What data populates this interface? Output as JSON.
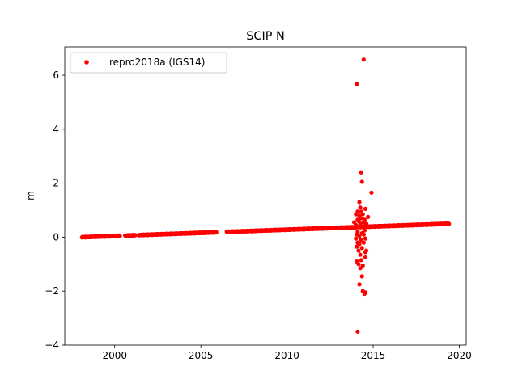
{
  "chart_data": {
    "type": "scatter",
    "title": "SCIP N",
    "xlabel": "",
    "ylabel": "m",
    "xlim": [
      1997.1,
      2020.4
    ],
    "ylim": [
      -4,
      7.05
    ],
    "xticks": [
      2000,
      2005,
      2010,
      2015,
      2020
    ],
    "yticks": [
      -4,
      -2,
      0,
      2,
      4,
      6
    ],
    "grid": false,
    "legend_position": "upper-left",
    "marker": "dot",
    "series": [
      {
        "name": "repro2018a (IGS14)",
        "color": "#ff0000",
        "trend": {
          "x_start": 1998.1,
          "x_end": 2019.4,
          "y_start": 0.0,
          "y_end": 0.5
        },
        "coverage_ranges": [
          [
            1998.1,
            2000.3
          ],
          [
            2000.6,
            2001.2
          ],
          [
            2001.4,
            2005.9
          ],
          [
            2006.5,
            2014.0
          ],
          [
            2014.1,
            2019.4
          ]
        ],
        "outliers": [
          [
            14.05,
            5.67
          ],
          [
            14.45,
            6.58
          ],
          [
            14.3,
            2.4
          ],
          [
            14.35,
            2.05
          ],
          [
            14.9,
            1.65
          ],
          [
            14.2,
            1.3
          ],
          [
            14.25,
            1.1
          ],
          [
            14.1,
            0.95
          ],
          [
            14.3,
            0.95
          ],
          [
            14.55,
            1.05
          ],
          [
            14.0,
            0.85
          ],
          [
            14.2,
            0.8
          ],
          [
            14.4,
            0.85
          ],
          [
            14.7,
            0.75
          ],
          [
            14.1,
            0.65
          ],
          [
            14.3,
            0.7
          ],
          [
            14.5,
            0.65
          ],
          [
            13.9,
            0.55
          ],
          [
            14.15,
            0.6
          ],
          [
            14.45,
            0.55
          ],
          [
            14.6,
            0.5
          ],
          [
            14.0,
            0.45
          ],
          [
            14.25,
            0.5
          ],
          [
            14.35,
            0.4
          ],
          [
            14.1,
            0.2
          ],
          [
            14.35,
            0.15
          ],
          [
            14.5,
            0.25
          ],
          [
            14.05,
            0.1
          ],
          [
            14.2,
            0.05
          ],
          [
            14.45,
            0.1
          ],
          [
            14.0,
            -0.05
          ],
          [
            14.3,
            -0.1
          ],
          [
            14.55,
            -0.05
          ],
          [
            14.1,
            -0.2
          ],
          [
            14.2,
            -0.25
          ],
          [
            14.45,
            -0.2
          ],
          [
            14.05,
            -0.35
          ],
          [
            14.35,
            -0.4
          ],
          [
            14.15,
            -0.5
          ],
          [
            14.55,
            -0.55
          ],
          [
            14.25,
            -0.65
          ],
          [
            14.6,
            -0.5
          ],
          [
            14.05,
            -0.9
          ],
          [
            14.3,
            -0.85
          ],
          [
            14.55,
            -0.75
          ],
          [
            14.15,
            -1.0
          ],
          [
            14.4,
            -1.05
          ],
          [
            14.25,
            -1.15
          ],
          [
            14.35,
            -1.45
          ],
          [
            14.2,
            -1.75
          ],
          [
            14.4,
            -2.0
          ],
          [
            14.55,
            -2.05
          ],
          [
            14.5,
            -2.1
          ],
          [
            14.1,
            -3.5
          ]
        ],
        "outlier_x_offset": 2000
      }
    ]
  }
}
